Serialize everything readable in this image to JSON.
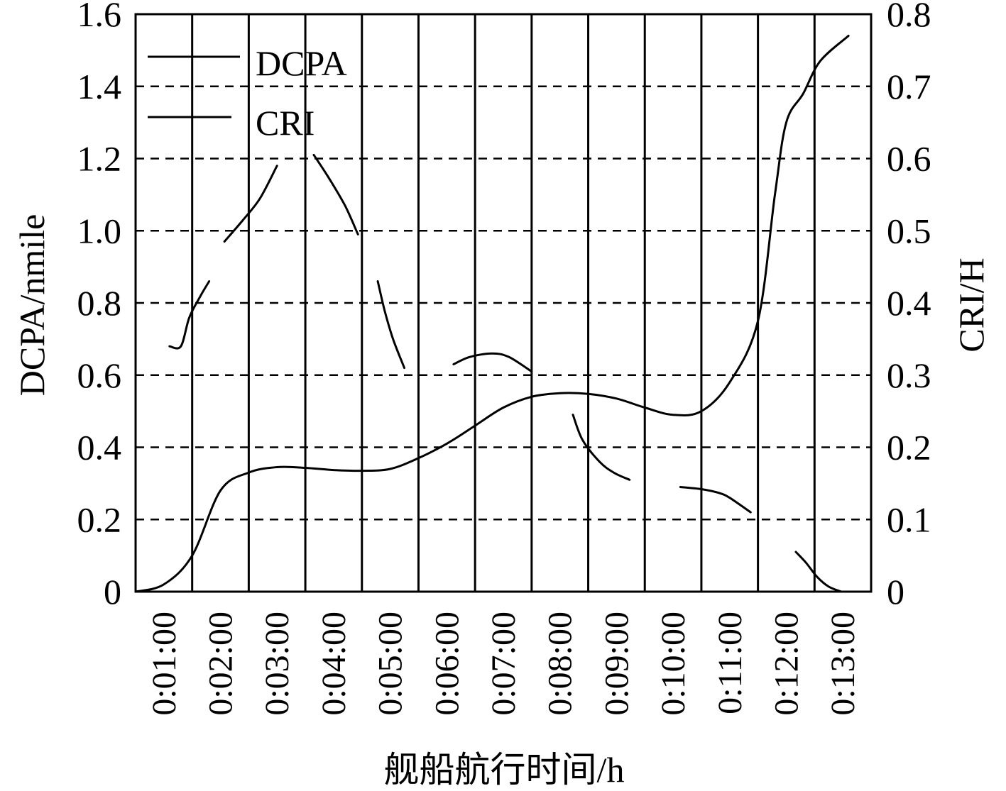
{
  "chart_data": {
    "type": "line",
    "xlabel": "舰船航行时间/h",
    "ylabel_left": "DCPA/nmile",
    "ylabel_right": "CRI/H",
    "x_ticks": [
      "0:01:00",
      "0:02:00",
      "0:03:00",
      "0:04:00",
      "0:05:00",
      "0:06:00",
      "0:07:00",
      "0:08:00",
      "0:09:00",
      "0:10:00",
      "0:11:00",
      "0:12:00",
      "0:13:00"
    ],
    "x_range": [
      0.5,
      13.5
    ],
    "y_left_range": [
      0,
      1.6
    ],
    "y_right_range": [
      0,
      0.8
    ],
    "y_left_ticks": [
      "0",
      "0.2",
      "0.4",
      "0.6",
      "0.8",
      "1.0",
      "1.2",
      "1.4",
      "1.6"
    ],
    "y_right_ticks": [
      "0",
      "0.1",
      "0.2",
      "0.3",
      "0.4",
      "0.5",
      "0.6",
      "0.7",
      "0.8"
    ],
    "grid": {
      "horizontal": "dashed",
      "vertical": "solid at segment boundaries"
    },
    "legend_position": "top-left",
    "series": [
      {
        "name": "DCPA",
        "axis": "left",
        "x": [
          0.5,
          1.0,
          1.5,
          2.0,
          2.5,
          3.0,
          3.5,
          4.0,
          4.5,
          5.0,
          5.5,
          6.0,
          6.5,
          7.0,
          7.5,
          8.0,
          8.5,
          9.0,
          9.5,
          10.0,
          10.5,
          11.0,
          11.5,
          11.8,
          12.0,
          12.3,
          12.6,
          13.1
        ],
        "y": [
          0.0,
          0.02,
          0.1,
          0.28,
          0.33,
          0.345,
          0.343,
          0.337,
          0.335,
          0.34,
          0.37,
          0.41,
          0.46,
          0.51,
          0.54,
          0.55,
          0.548,
          0.535,
          0.51,
          0.49,
          0.5,
          0.58,
          0.75,
          1.1,
          1.3,
          1.38,
          1.47,
          1.54
        ]
      },
      {
        "name": "CRI",
        "axis": "right",
        "segments": [
          {
            "x": [
              1.1,
              1.3,
              1.45,
              1.65,
              1.8
            ],
            "y": [
              0.34,
              0.34,
              0.38,
              0.41,
              0.43
            ]
          },
          {
            "x": [
              2.07,
              2.4,
              2.7,
              3.0
            ],
            "y": [
              0.485,
              0.515,
              0.545,
              0.59
            ]
          },
          {
            "x": [
              3.65,
              3.9,
              4.2,
              4.43
            ],
            "y": [
              0.605,
              0.575,
              0.535,
              0.495
            ]
          },
          {
            "x": [
              4.78,
              4.9,
              5.05,
              5.25
            ],
            "y": [
              0.43,
              0.39,
              0.35,
              0.31
            ]
          },
          {
            "x": [
              6.12,
              6.4,
              6.8,
              7.1,
              7.5
            ],
            "y": [
              0.315,
              0.325,
              0.33,
              0.325,
              0.305
            ]
          },
          {
            "x": [
              8.23,
              8.4,
              8.7,
              8.95,
              9.23
            ],
            "y": [
              0.245,
              0.21,
              0.18,
              0.165,
              0.155
            ]
          },
          {
            "x": [
              10.13,
              10.5,
              10.8,
              11.0,
              11.37
            ],
            "y": [
              0.145,
              0.142,
              0.137,
              0.13,
              0.11
            ]
          },
          {
            "x": [
              12.17,
              12.35,
              12.55,
              12.75,
              12.97
            ],
            "y": [
              0.055,
              0.04,
              0.02,
              0.007,
              0.0
            ]
          }
        ]
      }
    ],
    "legend": [
      {
        "label": "DCPA"
      },
      {
        "label": "CRI"
      }
    ]
  }
}
